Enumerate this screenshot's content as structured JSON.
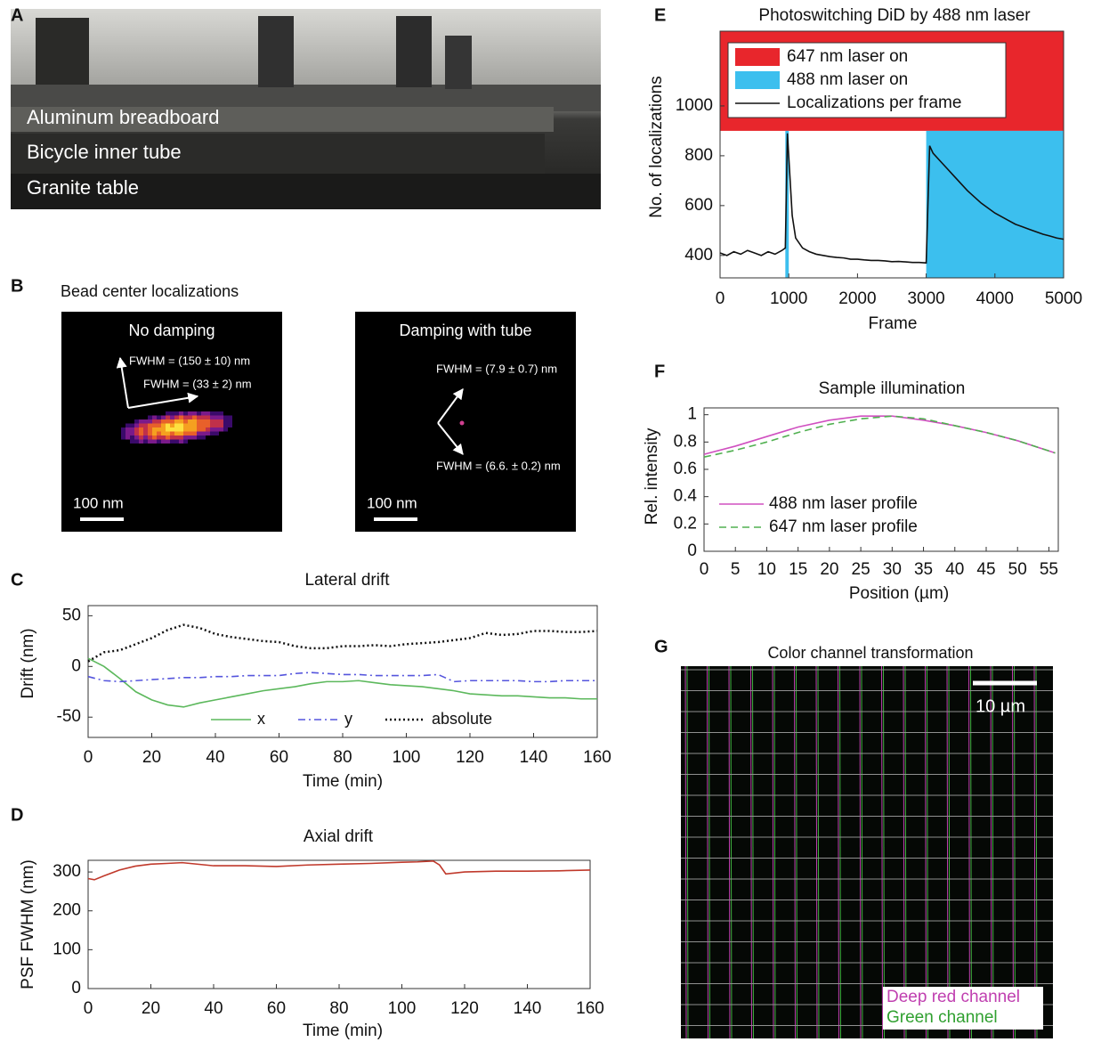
{
  "chart_data": [
    {
      "panel": "C",
      "type": "line",
      "title": "Lateral drift",
      "xlabel": "Time (min)",
      "ylabel": "Drift (nm)",
      "x": [
        0,
        5,
        10,
        15,
        20,
        25,
        30,
        35,
        40,
        45,
        50,
        55,
        60,
        65,
        70,
        75,
        80,
        85,
        90,
        95,
        100,
        105,
        110,
        115,
        120,
        125,
        130,
        135,
        140,
        145,
        150,
        155,
        160
      ],
      "series": [
        {
          "name": "x",
          "color": "#5cb85c",
          "style": "solid",
          "values": [
            8,
            0,
            -12,
            -25,
            -33,
            -38,
            -40,
            -36,
            -33,
            -30,
            -27,
            -24,
            -22,
            -20,
            -17,
            -15,
            -15,
            -14,
            -16,
            -18,
            -19,
            -20,
            -22,
            -24,
            -27,
            -28,
            -29,
            -29,
            -30,
            -31,
            -31,
            -32,
            -32
          ]
        },
        {
          "name": "y",
          "color": "#5555dd",
          "style": "dashdot",
          "values": [
            -10,
            -14,
            -15,
            -14,
            -13,
            -12,
            -11,
            -11,
            -10,
            -10,
            -9,
            -9,
            -9,
            -7,
            -6,
            -7,
            -8,
            -8,
            -9,
            -9,
            -9,
            -9,
            -8,
            -15,
            -14,
            -14,
            -14,
            -14,
            -15,
            -15,
            -14,
            -14,
            -14
          ]
        },
        {
          "name": "absolute",
          "color": "#111111",
          "style": "dotted",
          "values": [
            5,
            14,
            16,
            22,
            28,
            36,
            41,
            38,
            32,
            29,
            27,
            25,
            24,
            20,
            18,
            18,
            20,
            20,
            21,
            20,
            22,
            23,
            24,
            26,
            28,
            33,
            31,
            32,
            35,
            35,
            34,
            34,
            35
          ]
        }
      ],
      "xlim": [
        0,
        160
      ],
      "ylim": [
        -70,
        60
      ],
      "xticks": [
        0,
        20,
        40,
        60,
        80,
        100,
        120,
        140,
        160
      ],
      "yticks": [
        -50,
        0,
        50
      ],
      "legend": "lower center"
    },
    {
      "panel": "D",
      "type": "line",
      "title": "Axial drift",
      "xlabel": "Time (min)",
      "ylabel": "PSF FWHM (nm)",
      "x": [
        0,
        2,
        5,
        10,
        15,
        20,
        25,
        30,
        35,
        40,
        50,
        60,
        70,
        80,
        90,
        100,
        105,
        110,
        112,
        114,
        120,
        130,
        140,
        150,
        160
      ],
      "series": [
        {
          "name": null,
          "color": "#c0392b",
          "style": "solid",
          "values": [
            283,
            280,
            290,
            305,
            315,
            320,
            322,
            324,
            320,
            316,
            316,
            314,
            318,
            320,
            322,
            325,
            326,
            328,
            318,
            295,
            300,
            302,
            302,
            303,
            305
          ]
        }
      ],
      "xlim": [
        0,
        160
      ],
      "ylim": [
        0,
        330
      ],
      "xticks": [
        0,
        20,
        40,
        60,
        80,
        100,
        120,
        140,
        160
      ],
      "yticks": [
        0,
        100,
        200,
        300
      ]
    },
    {
      "panel": "E",
      "type": "line",
      "title": "Photoswitching DiD by 488 nm laser",
      "xlabel": "Frame",
      "ylabel": "No. of localizations",
      "x": [
        0,
        100,
        200,
        300,
        400,
        500,
        600,
        700,
        800,
        900,
        950,
        980,
        1050,
        1100,
        1200,
        1300,
        1400,
        1500,
        1600,
        1700,
        1800,
        1900,
        2000,
        2100,
        2200,
        2300,
        2400,
        2500,
        2600,
        2700,
        2800,
        2900,
        3000,
        3050,
        3100,
        3200,
        3300,
        3400,
        3500,
        3600,
        3700,
        3800,
        3900,
        4000,
        4100,
        4200,
        4300,
        4400,
        4500,
        4600,
        4700,
        4800,
        4900,
        5000
      ],
      "regions": [
        {
          "name": "647 nm laser on",
          "color": "#e8262c",
          "x": [
            [
              0,
              5000
            ]
          ],
          "y": [
            900,
            1300
          ]
        },
        {
          "name": "488 nm laser on",
          "color": "#3cbfee",
          "x": [
            [
              950,
              1000
            ],
            [
              3000,
              5000
            ]
          ],
          "y": [
            310,
            900
          ]
        }
      ],
      "series": [
        {
          "name": "Localizations per frame",
          "color": "#111111",
          "style": "solid",
          "values": [
            410,
            400,
            415,
            405,
            420,
            410,
            400,
            415,
            405,
            420,
            430,
            890,
            560,
            470,
            430,
            415,
            405,
            400,
            395,
            392,
            390,
            385,
            385,
            382,
            380,
            380,
            378,
            375,
            376,
            374,
            372,
            372,
            370,
            840,
            810,
            780,
            750,
            720,
            690,
            660,
            635,
            610,
            590,
            570,
            555,
            540,
            525,
            515,
            505,
            495,
            485,
            478,
            470,
            465
          ]
        }
      ],
      "xlim": [
        0,
        5000
      ],
      "ylim": [
        310,
        1300
      ],
      "xticks": [
        0,
        1000,
        2000,
        3000,
        4000,
        5000
      ],
      "yticks": [
        400,
        600,
        800,
        1000
      ],
      "legend": "upper left"
    },
    {
      "panel": "F",
      "type": "line",
      "title": "Sample illumination",
      "xlabel": "Position (µm)",
      "ylabel": "Rel. intensity",
      "x": [
        0,
        5,
        10,
        15,
        20,
        25,
        30,
        35,
        40,
        45,
        50,
        56
      ],
      "series": [
        {
          "name": "488 nm laser profile",
          "color": "#d050c0",
          "style": "solid",
          "values": [
            0.71,
            0.77,
            0.84,
            0.91,
            0.96,
            0.99,
            0.99,
            0.96,
            0.92,
            0.87,
            0.81,
            0.72
          ]
        },
        {
          "name": "647 nm laser profile",
          "color": "#50b050",
          "style": "dashed",
          "values": [
            0.69,
            0.74,
            0.8,
            0.87,
            0.93,
            0.97,
            0.99,
            0.97,
            0.92,
            0.87,
            0.81,
            0.72
          ]
        }
      ],
      "xlim": [
        0,
        56.5
      ],
      "ylim": [
        0,
        1.05
      ],
      "xticks": [
        0,
        5,
        10,
        15,
        20,
        25,
        30,
        35,
        40,
        45,
        50,
        55
      ],
      "yticks": [
        0,
        0.2,
        0.4,
        0.6,
        0.8,
        1
      ],
      "legend": "lower left"
    }
  ],
  "photo": {
    "panel": "A",
    "labels": [
      "Aluminum breadboard",
      "Bicycle inner tube",
      "Granite table"
    ]
  },
  "beads": {
    "panel": "B",
    "title": "Bead center localizations",
    "images": [
      {
        "title": "No damping",
        "annotations": [
          "FWHM = (150 ± 10) nm",
          "FWHM = (33 ± 2) nm"
        ],
        "scale": "100 nm"
      },
      {
        "title": "Damping with tube",
        "annotations": [
          "FWHM = (7.9 ± 0.7) nm",
          "FWHM = (6.6. ± 0.2) nm"
        ],
        "scale": "100 nm"
      }
    ]
  },
  "channels": {
    "panel": "G",
    "title": "Color channel transformation",
    "scale": "10 µm",
    "legend": [
      "Deep red channel",
      "Green channel"
    ]
  }
}
